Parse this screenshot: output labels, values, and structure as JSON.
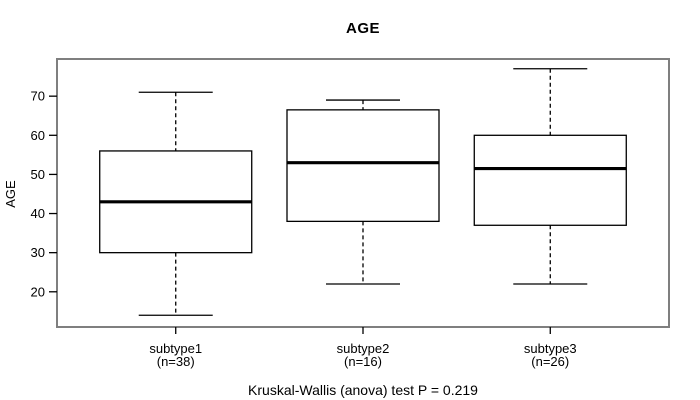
{
  "chart_data": {
    "type": "boxplot",
    "title": "AGE",
    "ylabel": "AGE",
    "xlabel": "",
    "categories": [
      "subtype1",
      "subtype2",
      "subtype3"
    ],
    "category_sublabels": [
      "(n=38)",
      "(n=16)",
      "(n=26)"
    ],
    "series": [
      {
        "name": "subtype1",
        "n": 38,
        "whisker_low": 14,
        "q1": 30,
        "median": 43,
        "q3": 56,
        "whisker_high": 71
      },
      {
        "name": "subtype2",
        "n": 16,
        "whisker_low": 22,
        "q1": 38,
        "median": 53,
        "q3": 66.5,
        "whisker_high": 69
      },
      {
        "name": "subtype3",
        "n": 26,
        "whisker_low": 22,
        "q1": 37,
        "median": 51.5,
        "q3": 60,
        "whisker_high": 77
      }
    ],
    "yticks": [
      20,
      30,
      40,
      50,
      60,
      70
    ],
    "ylim": [
      11,
      79.5
    ],
    "grid": false,
    "legend": false,
    "annotation": "Kruskal-Wallis (anova) test P = 0.219",
    "colors": {
      "background": "#ffffff",
      "text": "#000000",
      "box_fill": "#ffffff",
      "box_border": "#000000",
      "median": "#000000",
      "whisker": "#000000",
      "plot_border": "#7f7f7f"
    }
  }
}
